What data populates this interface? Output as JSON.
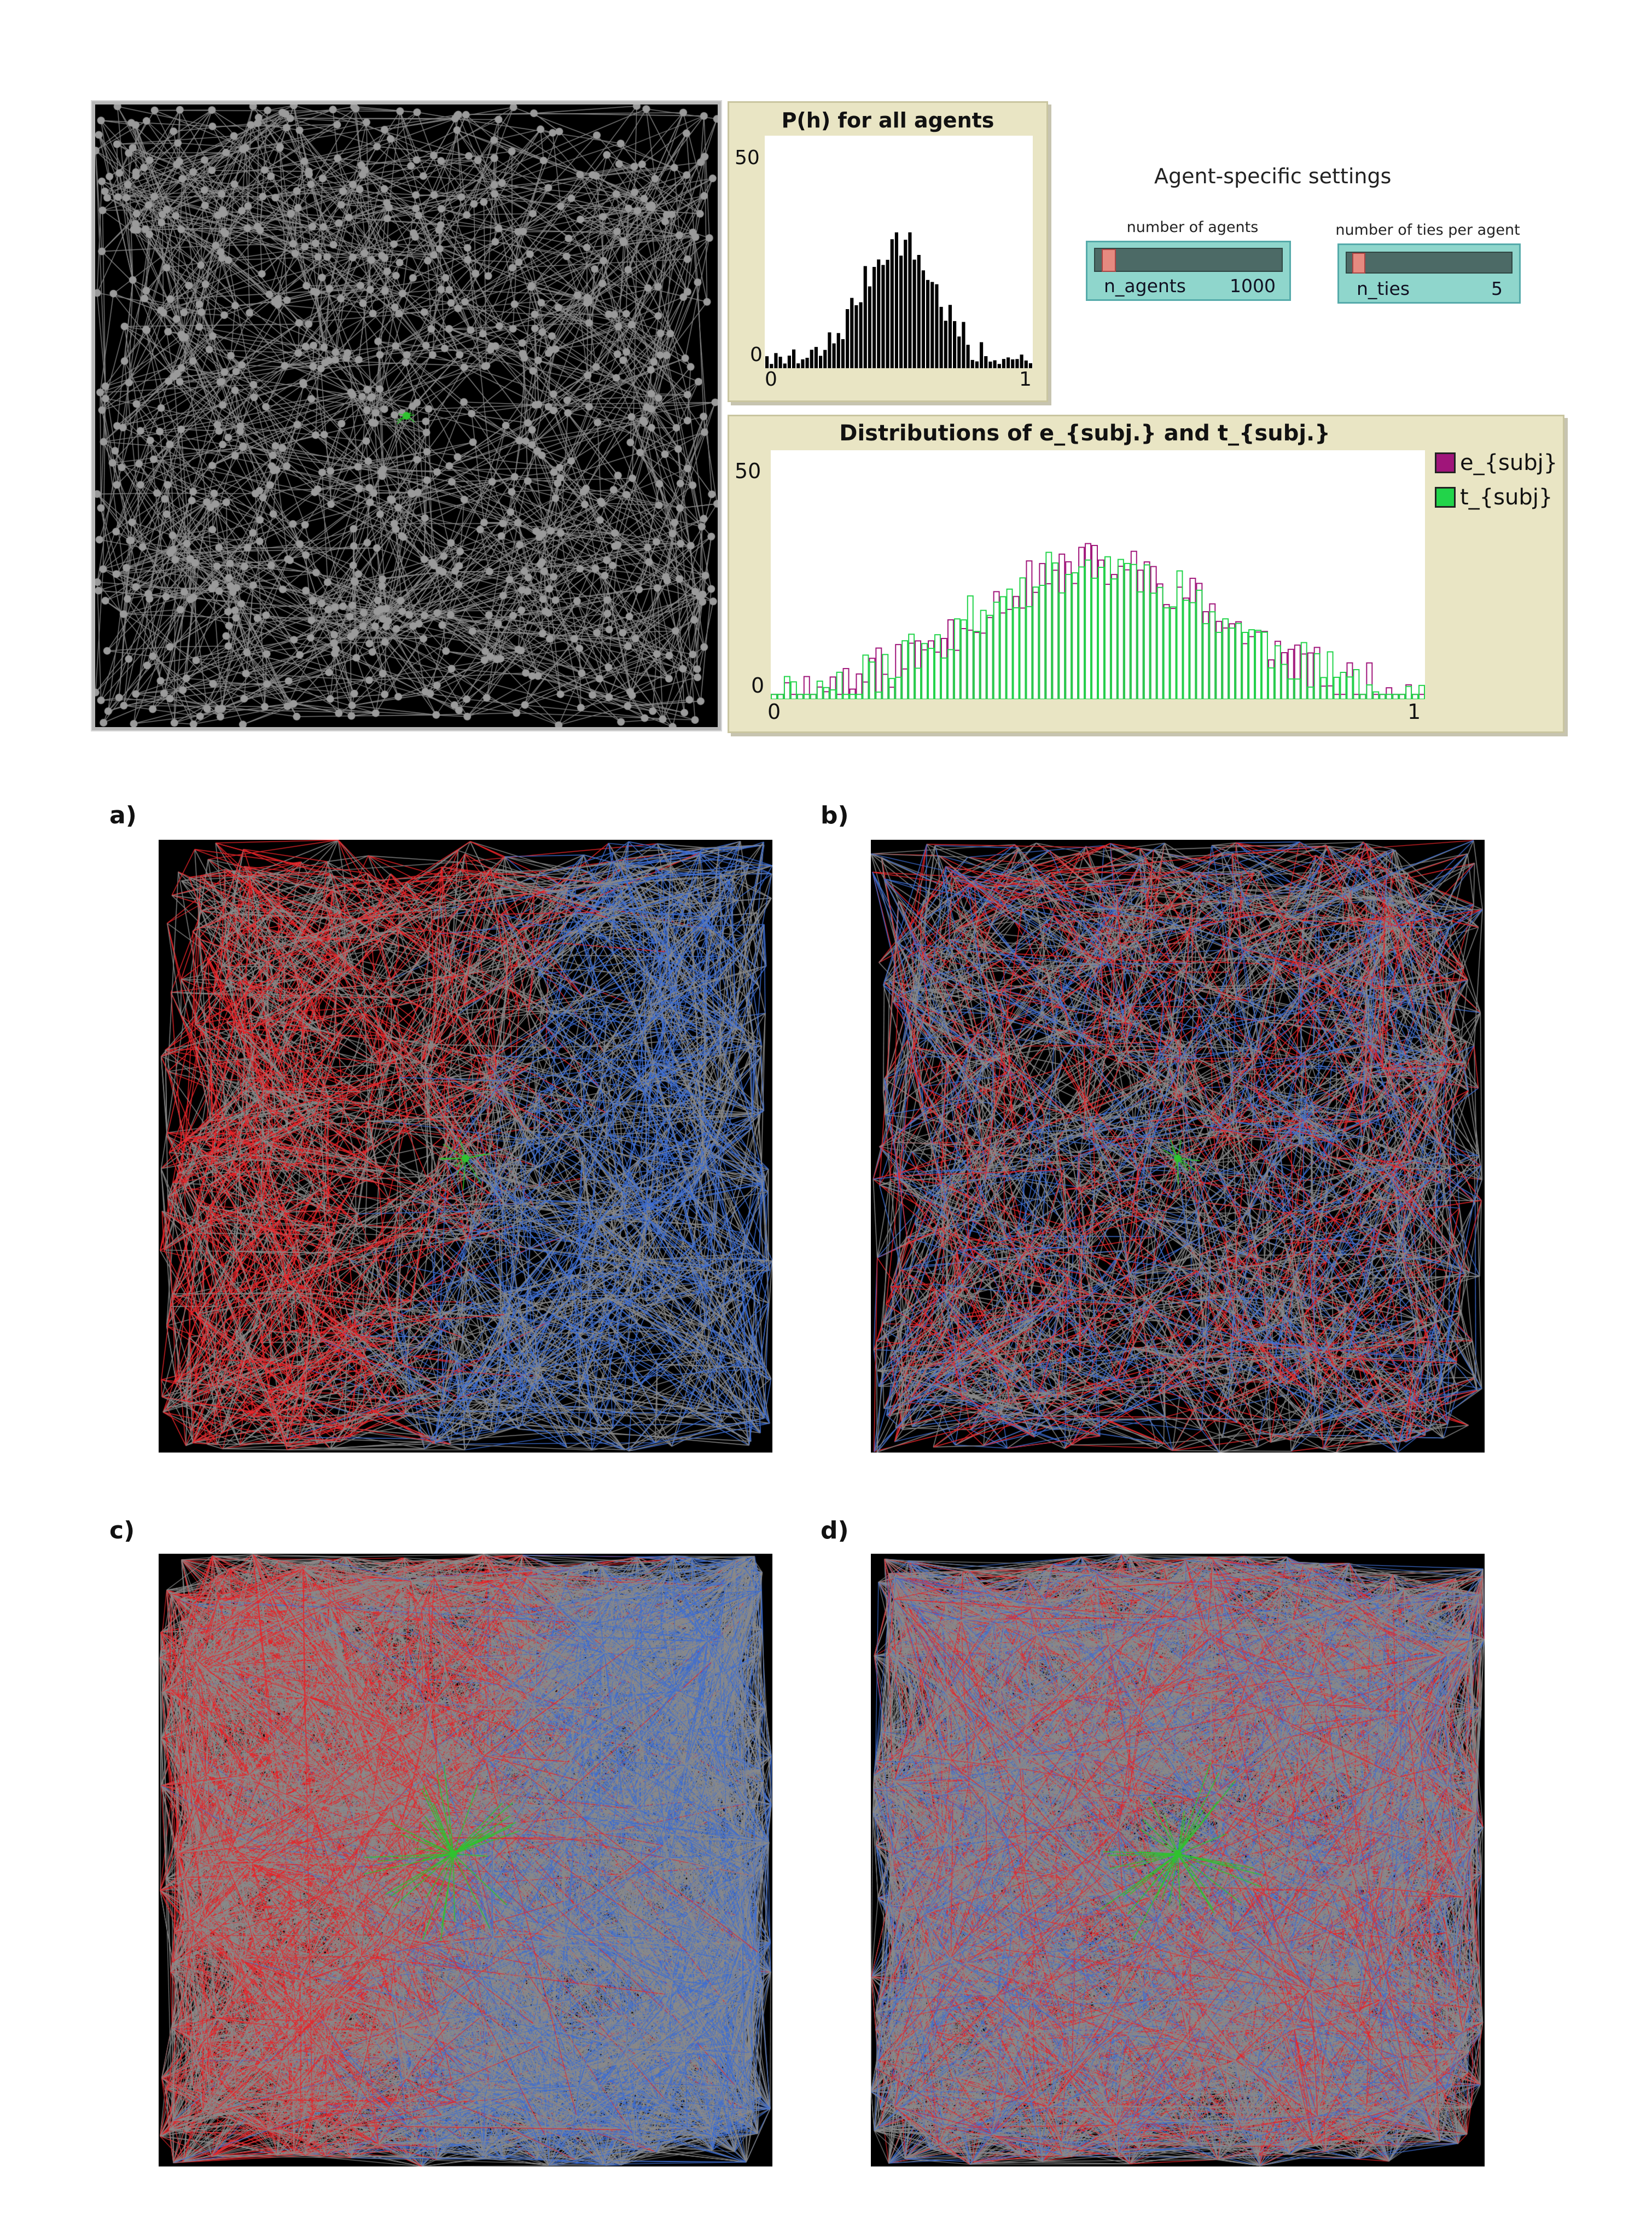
{
  "hist_top": {
    "title": "P(h) for all agents",
    "y_max_label": "50",
    "y_min_label": "0",
    "x_min_label": "0",
    "x_max_label": "1"
  },
  "settings": {
    "title": "Agent-specific settings",
    "agents_slider": {
      "label": "number of agents",
      "name": "n_agents",
      "value": "1000",
      "fraction": 0.04
    },
    "ties_slider": {
      "label": "number of ties per agent",
      "name": "n_ties",
      "value": "5",
      "fraction": 0.04
    }
  },
  "dist_plot": {
    "title": "Distributions of e_{subj.} and t_{subj.}",
    "y_max_label": "50",
    "y_min_label": "0",
    "x_min_label": "0",
    "x_max_label": "1",
    "legend": [
      {
        "label": "e_{subj}",
        "color": "#a0157a"
      },
      {
        "label": "t_{subj}",
        "color": "#22d44a"
      }
    ]
  },
  "panels": [
    {
      "letter": "a)"
    },
    {
      "letter": "b)"
    },
    {
      "letter": "c)"
    },
    {
      "letter": "d)"
    }
  ],
  "colors": {
    "red": "#e8252a",
    "blue": "#3e6ed2",
    "grey": "#8a8a8a",
    "green": "#2fc22f"
  }
}
